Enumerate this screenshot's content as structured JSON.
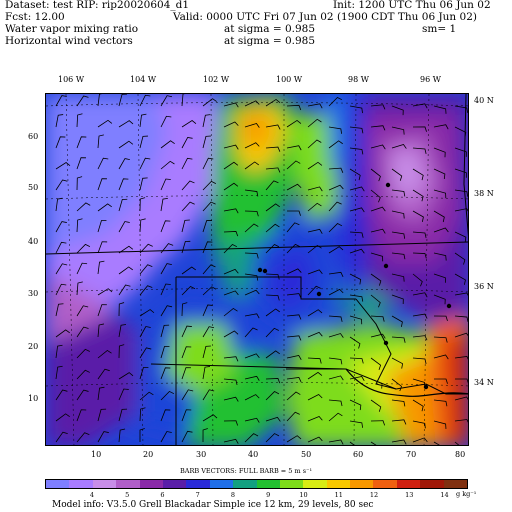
{
  "header": {
    "dataset": "Dataset: test  RIP: rip20020604_d1",
    "init": "Init: 1200 UTC Thu 06 Jun 02",
    "fcst": "Fcst:    12.00",
    "valid": "Valid: 0000 UTC Fri 07 Jun 02 (1900 CDT Thu 06 Jun 02)",
    "field1_name": "Water vapor mixing ratio",
    "field1_level": "at sigma = 0.985",
    "field1_extra": "sm= 1",
    "field2_name": "Horizontal wind vectors",
    "field2_level": "at sigma = 0.985"
  },
  "longitude_labels": [
    "106 W",
    "104 W",
    "102 W",
    "100 W",
    "98 W",
    "96 W"
  ],
  "latitude_labels": [
    "40 N",
    "38 N",
    "36 N",
    "34 N"
  ],
  "grid_x_labels": [
    "10",
    "20",
    "30",
    "40",
    "50",
    "60",
    "70",
    "80"
  ],
  "grid_y_labels": [
    "60",
    "50",
    "40",
    "30",
    "20",
    "10"
  ],
  "barbs_title": "BARB VECTORS:  FULL BARB = 5 m s⁻¹",
  "colorbar": {
    "colors": [
      "#7f7fff",
      "#a97cff",
      "#c88ee8",
      "#b05fc8",
      "#8a2aa8",
      "#5a1ea8",
      "#2a2ad8",
      "#1f6fe8",
      "#12a080",
      "#22c030",
      "#7edc1a",
      "#d8ec14",
      "#f8c800",
      "#f89800",
      "#f06010",
      "#d02010",
      "#a01808",
      "#803010"
    ],
    "labels": [
      "4",
      "5",
      "6",
      "7",
      "8",
      "9",
      "10",
      "11",
      "12",
      "13",
      "14"
    ],
    "unit": "g kg⁻¹"
  },
  "model_info": "Model info: V3.5.0   Grell     Blackadar  Simple ice     12 km,  29 levels,    80 sec"
}
